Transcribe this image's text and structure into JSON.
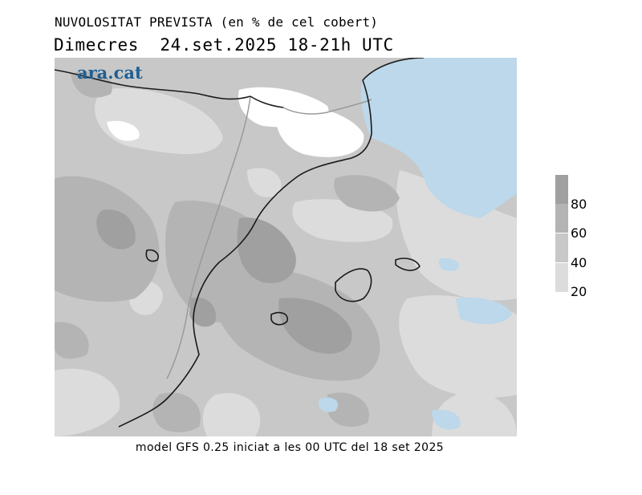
{
  "header": {
    "title": "NUVOLOSITAT PREVISTA (en % de cel cobert)",
    "subtitle": "Dimecres  24.set.2025 18-21h UTC"
  },
  "logo": {
    "text": "ara.cat",
    "color": "#1f5f93"
  },
  "legend": {
    "labels": [
      "80",
      "60",
      "40",
      "20"
    ],
    "colors": [
      "#a0a0a0",
      "#b4b4b4",
      "#c8c8c8",
      "#dcdcdc"
    ]
  },
  "map": {
    "colors": {
      "clear": "#ffffff",
      "low": "#dcdcdc",
      "mid": "#c8c8c8",
      "high": "#b4b4b4",
      "very_high": "#a0a0a0",
      "sea_clear": "#bcd8ea",
      "coast": "#1a1a1a",
      "border": "#9a9a9a"
    }
  },
  "footer": {
    "text": "model GFS 0.25 iniciat a les 00 UTC del 18 set 2025"
  }
}
